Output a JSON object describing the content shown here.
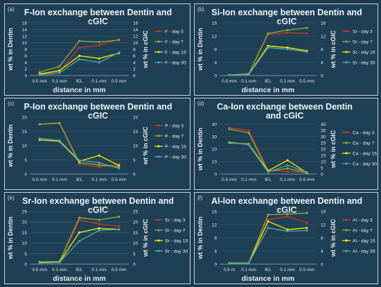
{
  "page": {
    "background": "#1c3a4e",
    "panel_background": "#1f3f55"
  },
  "colors": {
    "day3": "#c0392b",
    "day7": "#8ea53a",
    "day15": "#e6e600",
    "day30": "#4fa3a0",
    "overlay": "#e0457b"
  },
  "chart_data": [
    {
      "type": "line",
      "panel_label": "(a)",
      "title": "F-Ion exchange between Dentin and cGIC",
      "xlabel": "distance in mm",
      "ylabel": "wt % in Dentin",
      "y2label": "wt % in cGIC",
      "categories": [
        "0.5 mm",
        "0.1 mm",
        "IEL",
        "0.1 mm",
        "0.5 mm"
      ],
      "ylim": [
        0,
        16
      ],
      "yticks": [
        0,
        2,
        4,
        6,
        8,
        10,
        12,
        14,
        16
      ],
      "y2lim": [
        0,
        16
      ],
      "y2ticks": [
        0,
        2,
        4,
        6,
        8,
        10,
        12,
        14,
        16
      ],
      "series": [
        {
          "name": "F - day 3",
          "values": [
            0.3,
            1.2,
            8.5,
            9.2,
            11.0
          ]
        },
        {
          "name": "F - day 7",
          "values": [
            1.0,
            2.8,
            10.5,
            10.2,
            10.8
          ]
        },
        {
          "name": "F - day 15",
          "values": [
            0.5,
            1.5,
            6.0,
            5.2,
            6.8
          ]
        },
        {
          "name": "F - day 30",
          "values": [
            0.2,
            0.8,
            5.0,
            4.0,
            7.0
          ]
        }
      ]
    },
    {
      "type": "line",
      "panel_label": "(b)",
      "title": "Si-Ion exchange between Dentin and cGIC",
      "xlabel": "distance in mm",
      "ylabel": "wt % in Dentin",
      "y2label": "wt % in cGIC",
      "categories": [
        "0.5 mm",
        "0.1 mm",
        "IEL",
        "0.1 mm",
        "0.5 mm"
      ],
      "ylim": [
        0,
        16
      ],
      "yticks": [
        0,
        4,
        8,
        12,
        16
      ],
      "y2lim": [
        0,
        16
      ],
      "y2ticks": [
        0,
        4,
        8,
        12,
        16
      ],
      "series": [
        {
          "name": "Si - day 3",
          "values": [
            0.2,
            0.4,
            12.5,
            13.0,
            12.8
          ]
        },
        {
          "name": "Si - day 7",
          "values": [
            0.2,
            0.5,
            12.8,
            13.8,
            14.5
          ]
        },
        {
          "name": "Si - day 15",
          "values": [
            0.2,
            0.4,
            9.0,
            8.5,
            7.5
          ]
        },
        {
          "name": "Si - day 30",
          "values": [
            0.2,
            0.3,
            8.5,
            8.0,
            7.2
          ]
        }
      ]
    },
    {
      "type": "line",
      "panel_label": "(c)",
      "title": "P-Ion exchange between Dentin and cGIC",
      "xlabel": "",
      "ylabel": "wt % in Dentin",
      "y2label": "wt % in cGIC",
      "categories": [
        "0.5 mm",
        "0.1 mm",
        "IEL",
        "0.1 mm",
        "0.5 mm"
      ],
      "ylim": [
        0,
        20
      ],
      "yticks": [
        0,
        5,
        10,
        15,
        20
      ],
      "y2lim": [
        0,
        20
      ],
      "y2ticks": [
        0,
        5,
        10,
        15,
        20
      ],
      "series": [
        {
          "name": "P - day 3",
          "values": [
            17.5,
            17.8,
            3.5,
            2.5,
            3.5
          ]
        },
        {
          "name": "P - day 7",
          "values": [
            17.5,
            18.0,
            4.0,
            3.2,
            2.5
          ]
        },
        {
          "name": "P - day 15",
          "values": [
            12.0,
            11.5,
            4.5,
            6.5,
            3.0
          ]
        },
        {
          "name": "P - day 30",
          "values": [
            12.5,
            11.8,
            4.8,
            4.0,
            2.0
          ]
        }
      ]
    },
    {
      "type": "line",
      "panel_label": "(d)",
      "title": "Ca-Ion exchange between Dentin and cGIC",
      "xlabel": "",
      "ylabel": "wt % in Dentin",
      "y2label": "wt % in cGIC",
      "categories": [
        "0.5 mm",
        "0.1 mm",
        "IEL",
        "0.1 mm",
        "0.5 mm"
      ],
      "ylim": [
        0,
        40
      ],
      "yticks": [
        0,
        10,
        20,
        30,
        40
      ],
      "y2lim": [
        0,
        40
      ],
      "y2ticks": [
        0,
        5,
        10,
        15,
        20,
        25,
        30,
        35,
        40
      ],
      "series": [
        {
          "name": "Ca - day 3",
          "values": [
            37.0,
            35.0,
            3.0,
            2.0,
            1.5
          ]
        },
        {
          "name": "Ca - day 7",
          "values": [
            36.0,
            33.0,
            2.0,
            4.5,
            1.0
          ]
        },
        {
          "name": "Ca - day 15",
          "values": [
            25.0,
            24.0,
            2.5,
            11.0,
            1.0
          ]
        },
        {
          "name": "Ca - day 30",
          "values": [
            25.5,
            23.5,
            1.5,
            7.0,
            1.5
          ]
        }
      ]
    },
    {
      "type": "line",
      "panel_label": "(e)",
      "title": "Sr-Ion exchange between Dentin and cGIC",
      "xlabel": "distance in mm",
      "ylabel": "wt % in Dentin",
      "y2label": "wt % in cGIC",
      "categories": [
        "0.5 mm",
        "0.1 mm",
        "IEL",
        "0.1 mm",
        "0.5 mm"
      ],
      "ylim": [
        0,
        25
      ],
      "yticks": [
        0,
        5,
        10,
        15,
        20,
        25
      ],
      "y2lim": [
        0,
        25
      ],
      "y2ticks": [
        0,
        5,
        10,
        15,
        20,
        25
      ],
      "series": [
        {
          "name": "Sr - day 3",
          "values": [
            0.5,
            0.8,
            21.0,
            19.0,
            18.0
          ]
        },
        {
          "name": "Sr - day 7",
          "values": [
            1.0,
            1.2,
            22.0,
            21.0,
            22.5
          ]
        },
        {
          "name": "Sr - day 15",
          "values": [
            0.8,
            1.0,
            15.0,
            17.0,
            16.5
          ]
        },
        {
          "name": "Sr - day 30",
          "values": [
            0.5,
            0.8,
            11.0,
            16.0,
            16.5
          ]
        }
      ]
    },
    {
      "type": "line",
      "panel_label": "(f)",
      "title": "Al-Ion exchange between Dentin and cGIC",
      "xlabel": "distance in mm",
      "ylabel": "wt % in Dentin",
      "y2label": "wt % in cGIC",
      "categories": [
        "0.5 m",
        "0.1 mm",
        "IEL",
        "0.1 mm",
        "0.5 mm"
      ],
      "ylim": [
        0,
        16
      ],
      "yticks": [
        0,
        4,
        8,
        12,
        16
      ],
      "y2lim": [
        0,
        16
      ],
      "y2ticks": [
        0,
        4,
        8,
        12,
        16
      ],
      "series": [
        {
          "name": "Al - day 3",
          "values": [
            0.3,
            0.4,
            13.5,
            14.5,
            12.5
          ]
        },
        {
          "name": "Al - day 7",
          "values": [
            0.3,
            0.4,
            15.0,
            15.2,
            15.5
          ]
        },
        {
          "name": "Al - day 15",
          "values": [
            0.3,
            0.3,
            13.0,
            10.5,
            11.0
          ]
        },
        {
          "name": "Al - day 30",
          "values": [
            0.2,
            0.3,
            11.0,
            10.0,
            10.2
          ]
        }
      ]
    }
  ]
}
